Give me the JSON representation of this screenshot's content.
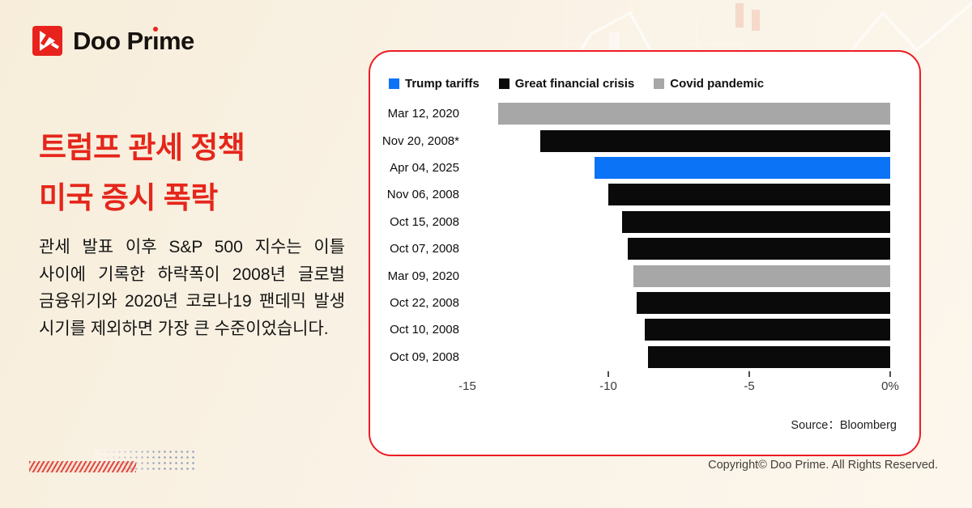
{
  "brand": {
    "name": "Doo Prime",
    "name_parts": [
      "Doo Pr",
      "ı",
      "me"
    ]
  },
  "headline": {
    "line1": "트럼프 관세 정책",
    "line2": "미국 증시 폭락"
  },
  "body_text": "관세 발표 이후 S&P 500 지수는 이틀 사이에 기록한 하락폭이 2008년 글로벌 금융위기와 2020년 코로나19 팬데믹 발생 시기를 제외하면 가장 큰 수준이었습니다.",
  "chart_data": {
    "type": "bar",
    "orientation": "horizontal",
    "title": "",
    "legend": [
      {
        "label": "Trump tariffs",
        "color": "#0b73f5"
      },
      {
        "label": "Great financial crisis",
        "color": "#0a0a0a"
      },
      {
        "label": "Covid pandemic",
        "color": "#a7a7a7"
      }
    ],
    "legend_position": "top",
    "categories": [
      "Mar 12, 2020",
      "Nov 20, 2008*",
      "Apr 04, 2025",
      "Nov 06, 2008",
      "Oct 15, 2008",
      "Oct 07, 2008",
      "Mar 09, 2020",
      "Oct 22, 2008",
      "Oct 10, 2008",
      "Oct 09, 2008"
    ],
    "values": [
      -13.9,
      -12.4,
      -10.5,
      -10.0,
      -9.5,
      -9.3,
      -9.1,
      -9.0,
      -8.7,
      -8.6
    ],
    "groups": [
      "Covid pandemic",
      "Great financial crisis",
      "Trump tariffs",
      "Great financial crisis",
      "Great financial crisis",
      "Great financial crisis",
      "Covid pandemic",
      "Great financial crisis",
      "Great financial crisis",
      "Great financial crisis"
    ],
    "xlim": [
      -15,
      0
    ],
    "x_ticks": [
      "-15",
      "-10",
      "-5",
      "0%"
    ],
    "grid": false,
    "source": "Source：Bloomberg"
  },
  "footer": {
    "copyright": "Copyright© Doo Prime. All Rights Reserved."
  },
  "colors": {
    "brand_red": "#e5261b",
    "card_border_red": "#ed1c24",
    "background_cream": "#faf3e7",
    "bar_blue": "#0b73f5",
    "bar_black": "#0a0a0a",
    "bar_gray": "#a7a7a7",
    "deco_dot_gray_blue": "#9fadc0"
  }
}
